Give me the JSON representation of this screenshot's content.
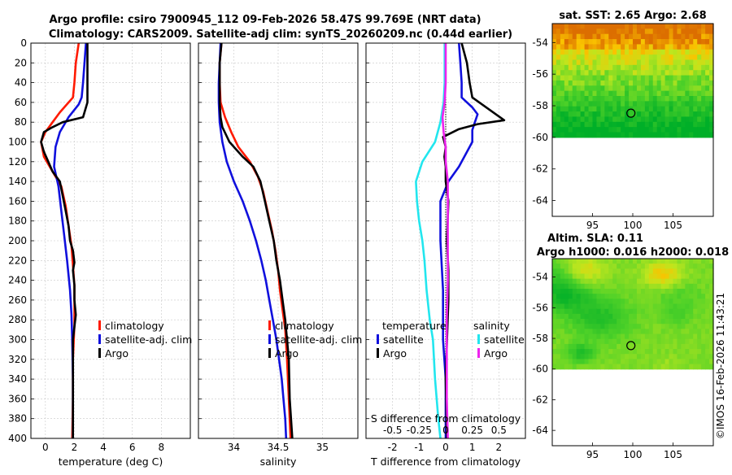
{
  "titles": {
    "line1": "Argo profile: csiro 7900945_112 09-Feb-2026 58.47S 99.769E (NRT data)",
    "line2": "Climatology: CARS2009. Satellite-adj clim: synTS_20260209.nc (0.44d earlier)"
  },
  "colors": {
    "climatology": "#ff1a00",
    "satellite": "#1010dd",
    "argo": "#000000",
    "sat_salinity": "#22e6ee",
    "argo_salinity": "#ee22ee"
  },
  "depth_ticks": [
    "0",
    "20",
    "40",
    "60",
    "80",
    "100",
    "120",
    "140",
    "160",
    "180",
    "200",
    "220",
    "240",
    "260",
    "280",
    "300",
    "320",
    "340",
    "360",
    "380",
    "400"
  ],
  "chart_data": [
    {
      "type": "line",
      "name": "temperature",
      "xlabel": "temperature (deg C)",
      "xlim": [
        -1,
        10
      ],
      "ylim": [
        400,
        0
      ],
      "xticks": [
        "0",
        "2",
        "4",
        "6",
        "8"
      ],
      "xtick_values": [
        0,
        2,
        4,
        6,
        8
      ],
      "legend": [
        "climatology",
        "satellite-adj. clim",
        "Argo"
      ],
      "series": [
        {
          "name": "climatology",
          "color": "#ff1a00",
          "points": [
            [
              2.3,
              0
            ],
            [
              2.1,
              20
            ],
            [
              2.0,
              40
            ],
            [
              1.9,
              55
            ],
            [
              1.0,
              70
            ],
            [
              0.5,
              80
            ],
            [
              0.0,
              90
            ],
            [
              -0.3,
              100
            ],
            [
              -0.1,
              115
            ],
            [
              0.5,
              130
            ],
            [
              1.1,
              145
            ],
            [
              1.4,
              165
            ],
            [
              1.6,
              185
            ],
            [
              1.8,
              205
            ],
            [
              1.9,
              225
            ],
            [
              2.0,
              245
            ],
            [
              2.0,
              265
            ],
            [
              2.0,
              285
            ],
            [
              1.9,
              320
            ],
            [
              1.9,
              360
            ],
            [
              1.85,
              400
            ]
          ]
        },
        {
          "name": "satellite-adj. clim",
          "color": "#1010dd",
          "points": [
            [
              2.8,
              0
            ],
            [
              2.7,
              20
            ],
            [
              2.6,
              40
            ],
            [
              2.5,
              55
            ],
            [
              2.3,
              62
            ],
            [
              1.6,
              75
            ],
            [
              1.0,
              90
            ],
            [
              0.7,
              105
            ],
            [
              0.6,
              125
            ],
            [
              0.9,
              145
            ],
            [
              1.1,
              170
            ],
            [
              1.3,
              195
            ],
            [
              1.5,
              220
            ],
            [
              1.7,
              250
            ],
            [
              1.8,
              275
            ],
            [
              1.85,
              300
            ],
            [
              1.9,
              340
            ],
            [
              1.9,
              400
            ]
          ]
        },
        {
          "name": "Argo",
          "color": "#000000",
          "points": [
            [
              2.9,
              0
            ],
            [
              2.9,
              20
            ],
            [
              2.9,
              40
            ],
            [
              2.9,
              60
            ],
            [
              2.6,
              75
            ],
            [
              1.2,
              80
            ],
            [
              0.5,
              85
            ],
            [
              -0.1,
              90
            ],
            [
              -0.3,
              100
            ],
            [
              -0.1,
              110
            ],
            [
              0.2,
              120
            ],
            [
              0.5,
              130
            ],
            [
              1.0,
              140
            ],
            [
              1.2,
              155
            ],
            [
              1.4,
              170
            ],
            [
              1.6,
              185
            ],
            [
              1.7,
              200
            ],
            [
              1.9,
              210
            ],
            [
              2.0,
              222
            ],
            [
              1.9,
              230
            ],
            [
              2.0,
              245
            ],
            [
              2.0,
              260
            ],
            [
              2.1,
              275
            ],
            [
              1.9,
              300
            ],
            [
              1.9,
              340
            ],
            [
              1.9,
              400
            ]
          ]
        }
      ]
    },
    {
      "type": "line",
      "name": "salinity",
      "xlabel": "salinity",
      "xlim": [
        33.6,
        35.4
      ],
      "ylim": [
        400,
        0
      ],
      "xticks": [
        "34",
        "34.5",
        "35"
      ],
      "xtick_values": [
        34,
        34.5,
        35
      ],
      "legend": [
        "climatology",
        "satellite-adj. clim",
        "Argo"
      ],
      "series": [
        {
          "name": "climatology",
          "color": "#ff1a00",
          "points": [
            [
              33.86,
              0
            ],
            [
              33.84,
              20
            ],
            [
              33.84,
              40
            ],
            [
              33.85,
              60
            ],
            [
              33.9,
              75
            ],
            [
              33.97,
              90
            ],
            [
              34.05,
              105
            ],
            [
              34.18,
              120
            ],
            [
              34.27,
              135
            ],
            [
              34.33,
              150
            ],
            [
              34.38,
              170
            ],
            [
              34.43,
              190
            ],
            [
              34.47,
              210
            ],
            [
              34.5,
              230
            ],
            [
              34.52,
              250
            ],
            [
              34.55,
              270
            ],
            [
              34.58,
              290
            ],
            [
              34.6,
              320
            ],
            [
              34.62,
              360
            ],
            [
              34.64,
              400
            ]
          ]
        },
        {
          "name": "satellite-adj. clim",
          "color": "#1010dd",
          "points": [
            [
              33.85,
              0
            ],
            [
              33.84,
              20
            ],
            [
              33.83,
              40
            ],
            [
              33.83,
              60
            ],
            [
              33.84,
              80
            ],
            [
              33.87,
              100
            ],
            [
              33.92,
              120
            ],
            [
              34.0,
              140
            ],
            [
              34.1,
              160
            ],
            [
              34.18,
              180
            ],
            [
              34.25,
              200
            ],
            [
              34.31,
              220
            ],
            [
              34.36,
              240
            ],
            [
              34.4,
              260
            ],
            [
              34.44,
              280
            ],
            [
              34.48,
              300
            ],
            [
              34.51,
              320
            ],
            [
              34.54,
              340
            ],
            [
              34.56,
              360
            ],
            [
              34.58,
              380
            ],
            [
              34.59,
              400
            ]
          ]
        },
        {
          "name": "Argo",
          "color": "#000000",
          "points": [
            [
              33.86,
              0
            ],
            [
              33.84,
              20
            ],
            [
              33.84,
              40
            ],
            [
              33.84,
              60
            ],
            [
              33.85,
              75
            ],
            [
              33.87,
              85
            ],
            [
              33.95,
              100
            ],
            [
              34.1,
              115
            ],
            [
              34.22,
              125
            ],
            [
              34.3,
              140
            ],
            [
              34.35,
              160
            ],
            [
              34.4,
              180
            ],
            [
              34.45,
              200
            ],
            [
              34.48,
              220
            ],
            [
              34.52,
              240
            ],
            [
              34.55,
              260
            ],
            [
              34.58,
              280
            ],
            [
              34.6,
              300
            ],
            [
              34.62,
              320
            ],
            [
              34.63,
              360
            ],
            [
              34.66,
              400
            ]
          ]
        }
      ]
    },
    {
      "type": "line",
      "name": "difference",
      "xlabel": "T difference from climatology",
      "secondary_xlabel": "S difference from climatology",
      "xlim": [
        -3,
        3
      ],
      "ylim": [
        400,
        0
      ],
      "xticks": [
        "-2",
        "-1",
        "0",
        "1",
        "2"
      ],
      "xtick_values": [
        -2,
        -1,
        0,
        1,
        2
      ],
      "secondary_xticks": [
        "-0.5",
        "-0.25",
        "0",
        "0.25",
        "0.5"
      ],
      "secondary_xtick_values": [
        -0.5,
        -0.25,
        0,
        0.25,
        0.5
      ],
      "legend_temperature_title": "temperature",
      "legend_salinity_title": "salinity",
      "legend": [
        "satellite",
        "Argo",
        "satellite",
        "Argo"
      ],
      "series": [
        {
          "name": "temperature satellite",
          "color": "#1010dd",
          "points": [
            [
              0.5,
              0
            ],
            [
              0.55,
              20
            ],
            [
              0.6,
              40
            ],
            [
              0.6,
              55
            ],
            [
              1.0,
              65
            ],
            [
              1.2,
              72
            ],
            [
              1.1,
              80
            ],
            [
              1.0,
              88
            ],
            [
              1.0,
              100
            ],
            [
              0.8,
              110
            ],
            [
              0.5,
              125
            ],
            [
              0.1,
              140
            ],
            [
              -0.2,
              160
            ],
            [
              -0.2,
              200
            ],
            [
              -0.1,
              250
            ],
            [
              -0.1,
              300
            ],
            [
              0.0,
              340
            ],
            [
              0.0,
              400
            ]
          ]
        },
        {
          "name": "temperature Argo",
          "color": "#000000",
          "points": [
            [
              0.6,
              0
            ],
            [
              0.8,
              20
            ],
            [
              0.9,
              40
            ],
            [
              1.0,
              55
            ],
            [
              2.2,
              78
            ],
            [
              1.2,
              82
            ],
            [
              0.5,
              87
            ],
            [
              -0.1,
              95
            ],
            [
              0.0,
              105
            ],
            [
              -0.05,
              115
            ],
            [
              0.0,
              125
            ],
            [
              0.0,
              140
            ],
            [
              0.1,
              160
            ],
            [
              0.05,
              200
            ],
            [
              0.1,
              230
            ],
            [
              0.1,
              260
            ],
            [
              0.05,
              300
            ],
            [
              0.0,
              340
            ],
            [
              0.05,
              400
            ]
          ]
        },
        {
          "name": "salinity satellite",
          "color": "#22e6ee",
          "points": [
            [
              -0.01,
              0
            ],
            [
              -0.01,
              20
            ],
            [
              -0.01,
              40
            ],
            [
              -0.02,
              60
            ],
            [
              -0.05,
              80
            ],
            [
              -0.1,
              100
            ],
            [
              -0.22,
              120
            ],
            [
              -0.28,
              140
            ],
            [
              -0.27,
              160
            ],
            [
              -0.25,
              180
            ],
            [
              -0.22,
              200
            ],
            [
              -0.2,
              220
            ],
            [
              -0.18,
              250
            ],
            [
              -0.15,
              280
            ],
            [
              -0.12,
              300
            ],
            [
              -0.1,
              340
            ],
            [
              -0.07,
              380
            ],
            [
              -0.05,
              400
            ]
          ]
        },
        {
          "name": "salinity Argo",
          "color": "#ee22ee",
          "points": [
            [
              0.0,
              0
            ],
            [
              0.0,
              20
            ],
            [
              0.0,
              40
            ],
            [
              -0.01,
              60
            ],
            [
              -0.03,
              75
            ],
            [
              -0.02,
              90
            ],
            [
              0.0,
              105
            ],
            [
              0.0,
              120
            ],
            [
              0.02,
              140
            ],
            [
              0.02,
              170
            ],
            [
              0.02,
              200
            ],
            [
              0.02,
              240
            ],
            [
              0.01,
              280
            ],
            [
              0.01,
              320
            ],
            [
              0.01,
              360
            ],
            [
              0.02,
              400
            ]
          ]
        }
      ]
    },
    {
      "type": "heatmap",
      "name": "sst-map",
      "title": "sat. SST: 2.65 Argo: 2.68",
      "yticks": [
        "-54",
        "-56",
        "-58",
        "-60",
        "-62",
        "-64"
      ],
      "ytick_values": [
        -54,
        -56,
        -58,
        -60,
        -62,
        -64
      ],
      "xticks": [
        "95",
        "100",
        "105"
      ],
      "xtick_values": [
        95,
        100,
        105
      ],
      "xlim": [
        90,
        110
      ],
      "ylim": [
        -65,
        -52.8
      ],
      "data_ylim": [
        -60,
        -52.8
      ],
      "marker": [
        99.769,
        -58.47
      ]
    },
    {
      "type": "heatmap",
      "name": "sla-map",
      "title_line1": "Altim. SLA: 0.11",
      "title_line2": "Argo h1000: 0.016 h2000: 0.018",
      "yticks": [
        "-54",
        "-56",
        "-58",
        "-60",
        "-62",
        "-64"
      ],
      "ytick_values": [
        -54,
        -56,
        -58,
        -60,
        -62,
        -64
      ],
      "xticks": [
        "95",
        "100",
        "105"
      ],
      "xtick_values": [
        95,
        100,
        105
      ],
      "xlim": [
        90,
        110
      ],
      "ylim": [
        -65,
        -52.8
      ],
      "data_ylim": [
        -60,
        -52.8
      ],
      "marker": [
        99.769,
        -58.47
      ]
    }
  ],
  "copyright": "©IMOS 16-Feb-2026 11:43:21"
}
